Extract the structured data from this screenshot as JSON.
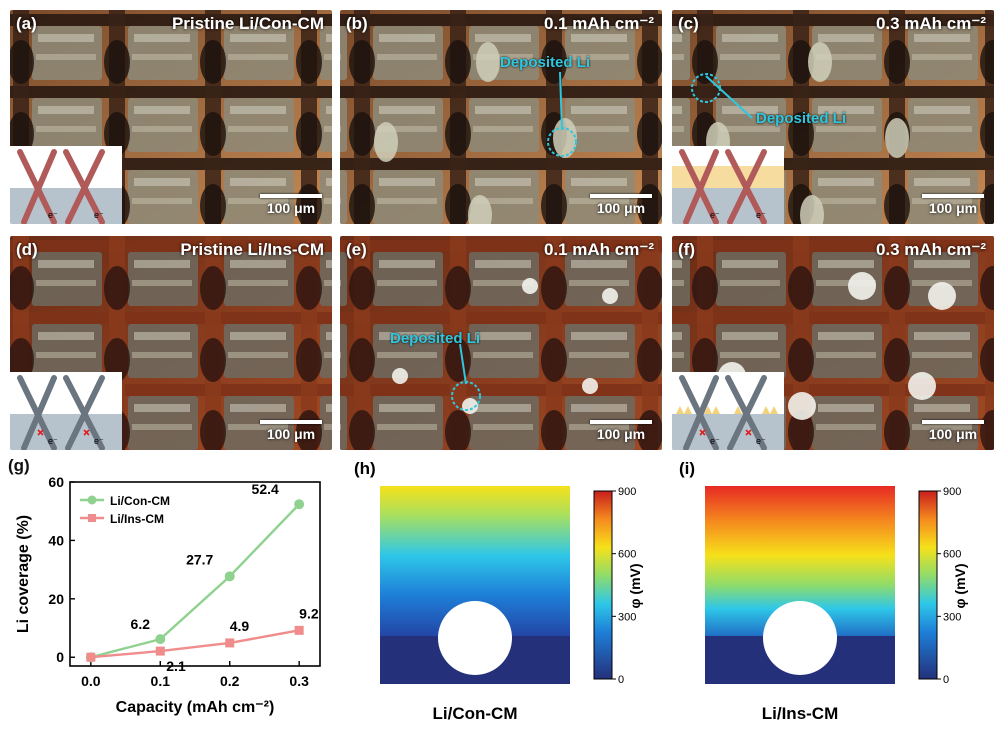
{
  "panels": [
    {
      "label": "(a)",
      "title": "Pristine Li/Con-CM",
      "scale": "100 μm"
    },
    {
      "label": "(b)",
      "title": "0.1 mAh cm⁻²",
      "scale": "100 μm",
      "annotation": "Deposited Li"
    },
    {
      "label": "(c)",
      "title": "0.3 mAh cm⁻²",
      "scale": "100 μm",
      "annotation": "Deposited Li"
    },
    {
      "label": "(d)",
      "title": "Pristine Li/Ins-CM",
      "scale": "100 μm"
    },
    {
      "label": "(e)",
      "title": "0.1 mAh cm⁻²",
      "scale": "100 μm",
      "annotation": "Deposited Li"
    },
    {
      "label": "(f)",
      "title": "0.3 mAh cm⁻²",
      "scale": "100 μm"
    }
  ],
  "inset_electron": "e⁻",
  "chart_data": {
    "label": "(g)",
    "type": "line",
    "xlabel": "Capacity (mAh cm⁻²)",
    "ylabel": "Li coverage (%)",
    "x": [
      0.0,
      0.1,
      0.2,
      0.3
    ],
    "xticks": [
      "0.0",
      "0.1",
      "0.2",
      "0.3"
    ],
    "yticks": [
      "0",
      "20",
      "40",
      "60"
    ],
    "xlim": [
      -0.03,
      0.33
    ],
    "ylim": [
      -3,
      60
    ],
    "legend_position": "top-left",
    "series": [
      {
        "name": "Li/Con-CM",
        "color": "#8fd18f",
        "marker": "circle",
        "values": [
          0,
          6.2,
          27.7,
          52.4
        ],
        "labels": [
          "",
          "6.2",
          "27.7",
          "52.4"
        ]
      },
      {
        "name": "Li/Ins-CM",
        "color": "#f08c8c",
        "marker": "square",
        "values": [
          0,
          2.1,
          4.9,
          9.2
        ],
        "labels": [
          "",
          "2.1",
          "4.9",
          "9.2"
        ]
      }
    ]
  },
  "maps": [
    {
      "label": "(h)",
      "caption": "Li/Con-CM"
    },
    {
      "label": "(i)",
      "caption": "Li/Ins-CM"
    }
  ],
  "colorbar": {
    "ticks": [
      "0",
      "300",
      "600",
      "900"
    ],
    "label": "φ (mV)"
  }
}
